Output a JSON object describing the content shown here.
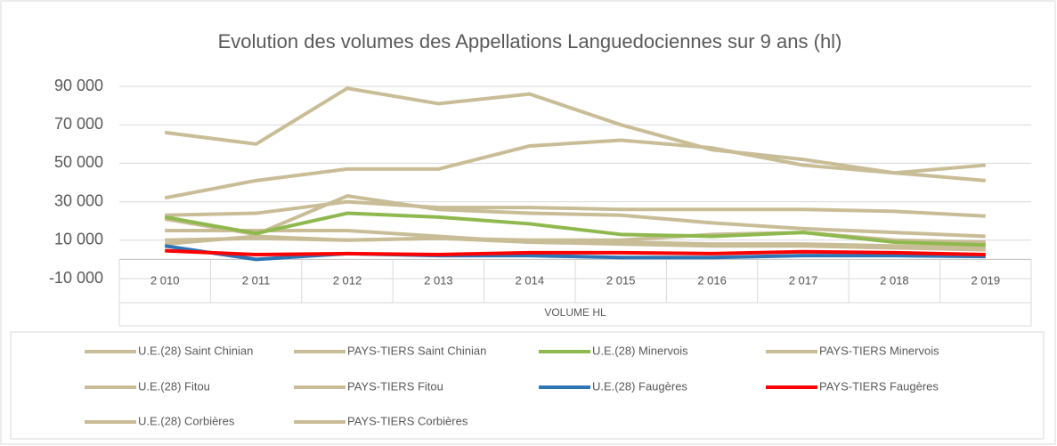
{
  "chart_data": {
    "type": "line",
    "title": "Evolution des volumes des Appellations Languedociennes sur 9 ans (hl)",
    "x_label": "VOLUME HL",
    "categories": [
      "2 010",
      "2 011",
      "2 012",
      "2 013",
      "2 014",
      "2 015",
      "2 016",
      "2 017",
      "2 018",
      "2 019"
    ],
    "ylim": [
      -10000,
      90000
    ],
    "yticks": [
      {
        "value": 90000,
        "label": "90 000"
      },
      {
        "value": 70000,
        "label": "70 000"
      },
      {
        "value": 50000,
        "label": "50 000"
      },
      {
        "value": 30000,
        "label": "30 000"
      },
      {
        "value": 10000,
        "label": "10 000"
      },
      {
        "value": -10000,
        "label": "-10 000"
      }
    ],
    "grid": true,
    "legend": "bottom",
    "series": [
      {
        "name": "U.E.(28) Saint Chinian",
        "color": "#c9bd97",
        "values": [
          66000,
          60000,
          89000,
          81000,
          86000,
          70000,
          57000,
          52000,
          45000,
          41000
        ]
      },
      {
        "name": "PAYS-TIERS Saint Chinian",
        "color": "#c9bd97",
        "values": [
          32000,
          41000,
          47000,
          47000,
          59000,
          62000,
          58000,
          49000,
          45000,
          49000
        ]
      },
      {
        "name": "U.E.(28) Minervois",
        "color": "#8fb84e",
        "values": [
          22000,
          13500,
          24000,
          22000,
          18500,
          13000,
          12000,
          14000,
          9000,
          7500
        ]
      },
      {
        "name": "PAYS-TIERS Minervois",
        "color": "#c9bd97",
        "values": [
          23000,
          24000,
          30000,
          27000,
          27000,
          26000,
          26000,
          26000,
          25000,
          22500
        ]
      },
      {
        "name": "U.E.(28) Fitou",
        "color": "#c9bd97",
        "values": [
          21000,
          13000,
          33000,
          26000,
          24000,
          23000,
          19000,
          16000,
          14000,
          12000
        ]
      },
      {
        "name": "PAYS-TIERS Fitou",
        "color": "#c9bd97",
        "values": [
          15000,
          15000,
          15000,
          12000,
          9000,
          9000,
          8000,
          8000,
          7000,
          6000
        ]
      },
      {
        "name": "U.E.(28) Faugères",
        "color": "#2e75b6",
        "values": [
          7000,
          0,
          3000,
          2000,
          2000,
          1000,
          1000,
          2000,
          2000,
          1500
        ]
      },
      {
        "name": "PAYS-TIERS Faugères",
        "color": "#ff0000",
        "values": [
          4500,
          2500,
          3000,
          2500,
          3500,
          3500,
          3000,
          4000,
          3500,
          2500
        ]
      },
      {
        "name": "U.E.(28) Corbières",
        "color": "#c9bd97",
        "values": [
          8000,
          12000,
          10000,
          11000,
          10000,
          10000,
          13000,
          14000,
          10000,
          9000
        ]
      },
      {
        "name": "PAYS-TIERS Corbières",
        "color": "#c9bd97",
        "values": [
          10000,
          11000,
          10000,
          11000,
          9000,
          8000,
          7000,
          7000,
          6000,
          5000
        ]
      }
    ]
  }
}
